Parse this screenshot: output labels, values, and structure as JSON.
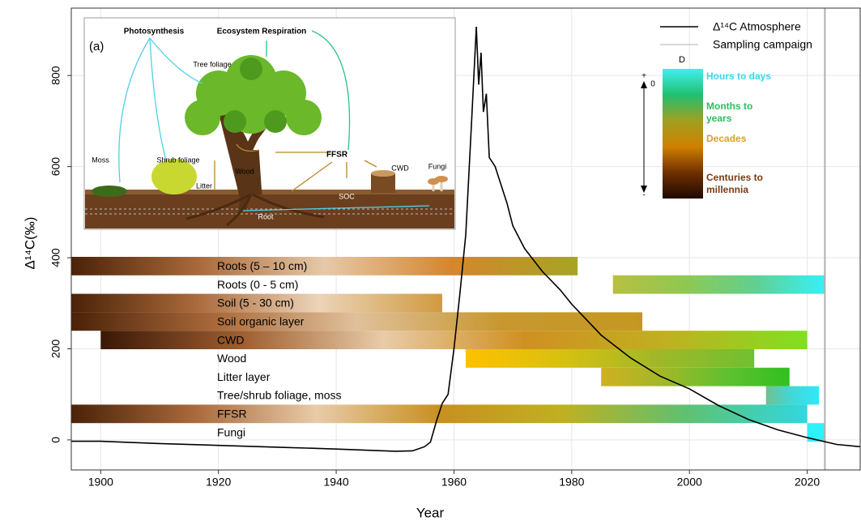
{
  "chart_data": {
    "type": "line",
    "x_label": "Year",
    "y_label": "Δ¹⁴C(‰)",
    "xlim": [
      1895,
      2029
    ],
    "ylim": [
      -66,
      948
    ],
    "xticks": [
      1900,
      1920,
      1940,
      1960,
      1980,
      2000,
      2020
    ],
    "yticks": [
      0,
      200,
      400,
      600,
      800
    ],
    "grid": true,
    "series": [
      {
        "name": "Δ¹⁴C Atmosphere",
        "color": "#000000",
        "x": [
          1895,
          1900,
          1910,
          1920,
          1930,
          1940,
          1950,
          1953,
          1955,
          1956,
          1957,
          1958,
          1959,
          1960,
          1961,
          1962,
          1963,
          1963.8,
          1964.2,
          1964.6,
          1965,
          1965.5,
          1966,
          1967,
          1968,
          1969,
          1970,
          1972,
          1975,
          1978,
          1980,
          1985,
          1990,
          1995,
          2000,
          2005,
          2010,
          2015,
          2020,
          2025,
          2029
        ],
        "values": [
          -3,
          -3,
          -8,
          -12,
          -16,
          -20,
          -25,
          -24,
          -15,
          -5,
          40,
          80,
          100,
          200,
          320,
          450,
          700,
          907,
          780,
          850,
          720,
          760,
          620,
          600,
          560,
          520,
          470,
          420,
          370,
          330,
          298,
          230,
          180,
          140,
          112,
          75,
          45,
          22,
          5,
          -10,
          -15
        ]
      }
    ],
    "sampling_campaign": {
      "name": "Sampling campaign",
      "color": "#b0b0b0",
      "x": 2023
    },
    "bars": [
      {
        "name": "Roots (5 – 10 cm)",
        "start": 1895,
        "end": 1981,
        "colors": [
          "#4a2208",
          "#a9693a",
          "#e6c9a9",
          "#d5862e",
          "#a5a524"
        ]
      },
      {
        "name": "Roots (0 - 5 cm)",
        "start": 1987,
        "end": 2023,
        "colors": [
          "#b8c040",
          "#90c850",
          "#60d090",
          "#38f0f8"
        ]
      },
      {
        "name": "Soil (5 - 30 cm)",
        "start": 1895,
        "end": 1958,
        "colors": [
          "#4a2208",
          "#a9693a",
          "#ecd4b8",
          "#d09a40"
        ]
      },
      {
        "name": "Soil organic layer",
        "start": 1895,
        "end": 1992,
        "colors": [
          "#4a2208",
          "#a9693a",
          "#e0c09a",
          "#c89830",
          "#c49820"
        ]
      },
      {
        "name": "CWD",
        "start": 1900,
        "end": 2020,
        "colors": [
          "#3a1806",
          "#9e5e30",
          "#e8cba8",
          "#d09020",
          "#c0b020",
          "#80e020"
        ]
      },
      {
        "name": "Wood",
        "start": 1962,
        "end": 2011,
        "colors": [
          "#ffc000",
          "#d8c010",
          "#a0b828",
          "#70c030"
        ]
      },
      {
        "name": "Litter layer",
        "start": 1985,
        "end": 2017,
        "colors": [
          "#d0b020",
          "#a0b828",
          "#60c030",
          "#30c020"
        ]
      },
      {
        "name": "Tree/shrub foliage, moss",
        "start": 2013,
        "end": 2022,
        "colors": [
          "#70c090",
          "#40d8d8",
          "#30e8f8"
        ]
      },
      {
        "name": "FFSR",
        "start": 1895,
        "end": 2020,
        "colors": [
          "#4a2208",
          "#a9693a",
          "#e8cba8",
          "#c89020",
          "#c0b020",
          "#60c070",
          "#30d8e0"
        ]
      },
      {
        "name": "Fungi",
        "start": 2020,
        "end": 2023,
        "colors": [
          "#30f0f8",
          "#30f0f8"
        ]
      }
    ],
    "colorbar": {
      "title": "D",
      "plus": "+",
      "zero": "0",
      "minus": "-",
      "colors": [
        "#40f0f0",
        "#20c070",
        "#a0a020",
        "#d08000",
        "#703000",
        "#200800"
      ],
      "labels": [
        {
          "text": "Hours to days",
          "color": "#3ad8f0"
        },
        {
          "text": "Months to years",
          "color": "#2ebd60"
        },
        {
          "text": "Decades",
          "color": "#d8a030"
        },
        {
          "text": "Centuries to millennia",
          "color": "#7a3a10"
        }
      ]
    }
  },
  "inset": {
    "panel": "(a)",
    "photosynthesis": "Photosynthesis",
    "respiration": "Ecosystem Respiration",
    "tree_foliage": "Tree foliage",
    "moss": "Moss",
    "shrub": "Shrub foliage",
    "litter": "Litter",
    "wood": "Wood",
    "ffsr": "FFSR",
    "cwd": "CWD",
    "fungi": "Fungi",
    "soc": "SOC",
    "root": "Root"
  }
}
